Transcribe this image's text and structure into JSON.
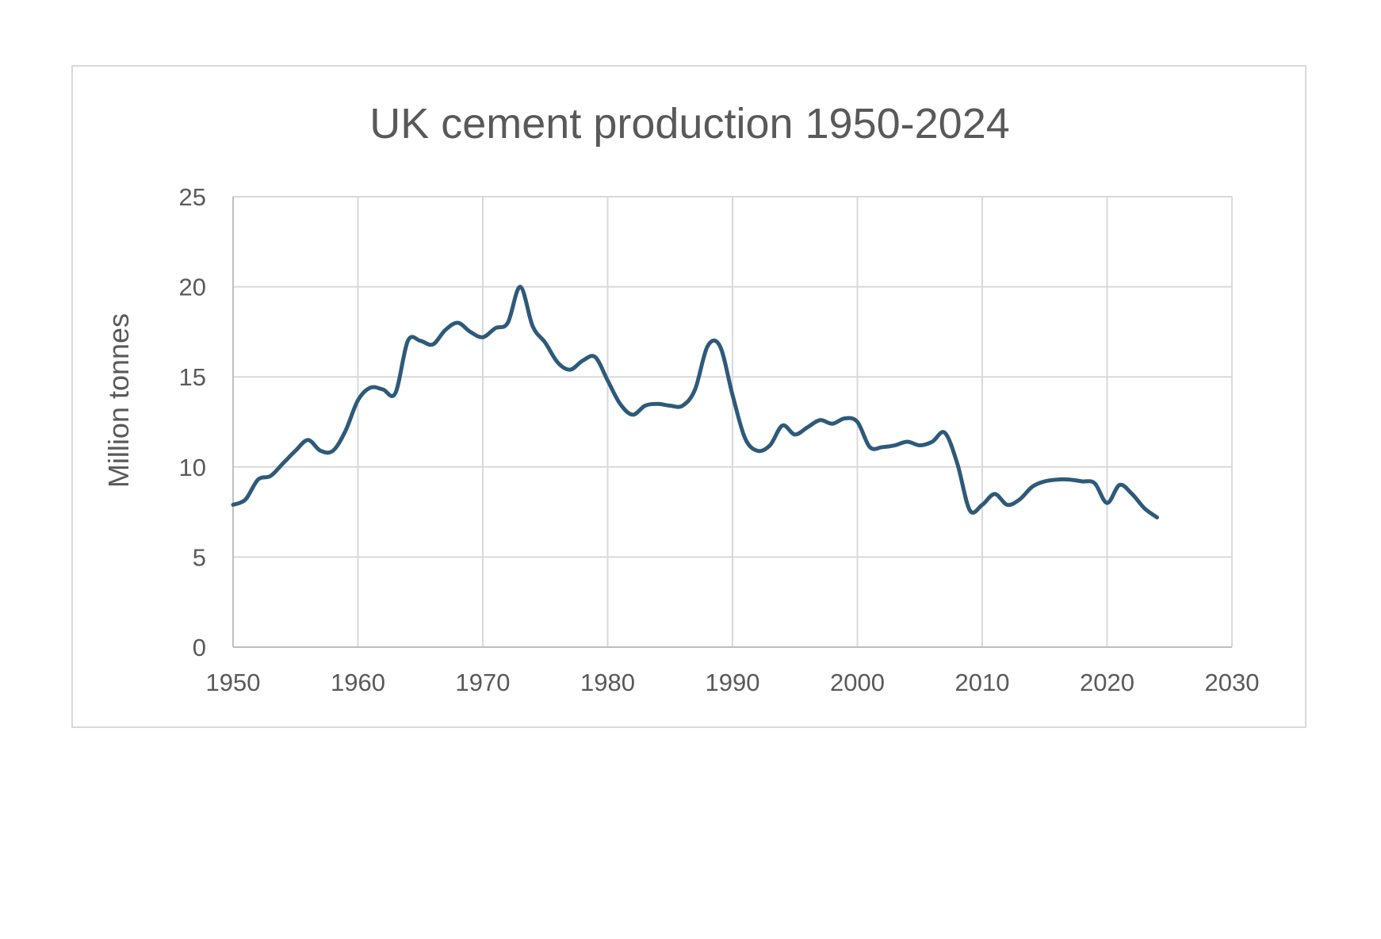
{
  "chart_data": {
    "type": "line",
    "title": "UK cement production 1950-2024",
    "xlabel": "",
    "ylabel": "Million tonnes",
    "xlim": [
      1950,
      2030
    ],
    "ylim": [
      0,
      25
    ],
    "xticks": [
      "1950",
      "1960",
      "1970",
      "1980",
      "1990",
      "2000",
      "2010",
      "2020",
      "2030"
    ],
    "yticks": [
      "0",
      "5",
      "10",
      "15",
      "20",
      "25"
    ],
    "grid": true,
    "legend": "none",
    "line_color": "#2e5a7a",
    "series": [
      {
        "x": [
          1950,
          1951,
          1952,
          1953,
          1954,
          1955,
          1956,
          1957,
          1958,
          1959,
          1960,
          1961,
          1962,
          1963,
          1964,
          1965,
          1966,
          1967,
          1968,
          1969,
          1970,
          1971,
          1972,
          1973,
          1974,
          1975,
          1976,
          1977,
          1978,
          1979,
          1980,
          1981,
          1982,
          1983,
          1984,
          1985,
          1986,
          1987,
          1988,
          1989,
          1990,
          1991,
          1992,
          1993,
          1994,
          1995,
          1996,
          1997,
          1998,
          1999,
          2000,
          2001,
          2002,
          2003,
          2004,
          2005,
          2006,
          2007,
          2008,
          2009,
          2010,
          2011,
          2012,
          2013,
          2014,
          2015,
          2016,
          2017,
          2018,
          2019,
          2020,
          2021,
          2022,
          2023,
          2024
        ],
        "y": [
          7.9,
          8.2,
          9.3,
          9.5,
          10.2,
          10.9,
          11.5,
          10.9,
          10.9,
          12.0,
          13.7,
          14.4,
          14.3,
          14.1,
          17.0,
          17.0,
          16.8,
          17.6,
          18.0,
          17.5,
          17.2,
          17.7,
          18.0,
          20.0,
          17.8,
          16.9,
          15.8,
          15.4,
          15.9,
          16.1,
          14.8,
          13.5,
          12.9,
          13.4,
          13.5,
          13.4,
          13.4,
          14.3,
          16.7,
          16.7,
          14.0,
          11.6,
          10.9,
          11.2,
          12.3,
          11.8,
          12.2,
          12.6,
          12.4,
          12.7,
          12.5,
          11.1,
          11.1,
          11.2,
          11.4,
          11.2,
          11.4,
          11.9,
          10.2,
          7.6,
          7.9,
          8.5,
          7.9,
          8.2,
          8.9,
          9.2,
          9.3,
          9.3,
          9.2,
          9.1,
          8.0,
          9.0,
          8.5,
          7.7,
          7.2
        ]
      }
    ]
  }
}
